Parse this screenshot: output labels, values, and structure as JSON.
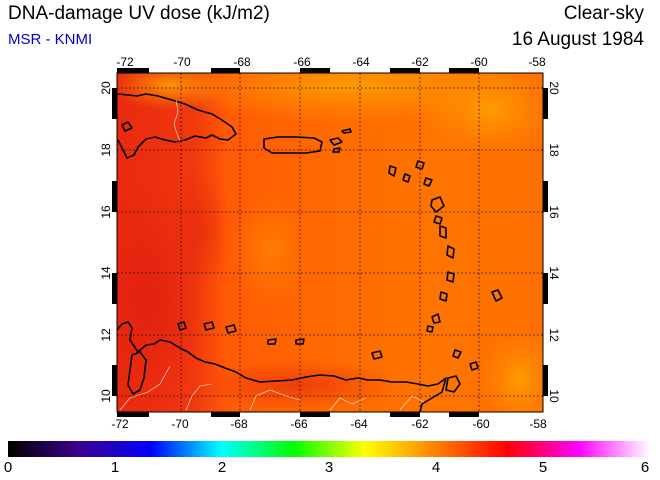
{
  "header": {
    "title": "DNA-damage UV dose (kJ/m2)",
    "credit": "MSR - KNMI",
    "condition": "Clear-sky",
    "date": "16 August 1984"
  },
  "map": {
    "lon_ticks": [
      "-72",
      "-70",
      "-68",
      "-66",
      "-64",
      "-62",
      "-60",
      "-58"
    ],
    "lat_ticks": [
      "10",
      "12",
      "14",
      "16",
      "18",
      "20"
    ],
    "lon_range": [
      -72,
      -58
    ],
    "lat_range": [
      9.5,
      20.5
    ],
    "grid": "dotted",
    "field_value_range": [
      3.9,
      4.7
    ],
    "field_colors": [
      "#e82a10",
      "#ff7a00",
      "#ffa000"
    ]
  },
  "colorbar": {
    "labels": [
      "0",
      "1",
      "2",
      "3",
      "4",
      "5",
      "6"
    ],
    "range": [
      0,
      6
    ],
    "colors": [
      "#000000",
      "#3d0090",
      "#0000ff",
      "#00ffff",
      "#00ff00",
      "#ffff00",
      "#ff8000",
      "#ff0000",
      "#ff00ff",
      "#ffffff"
    ]
  }
}
